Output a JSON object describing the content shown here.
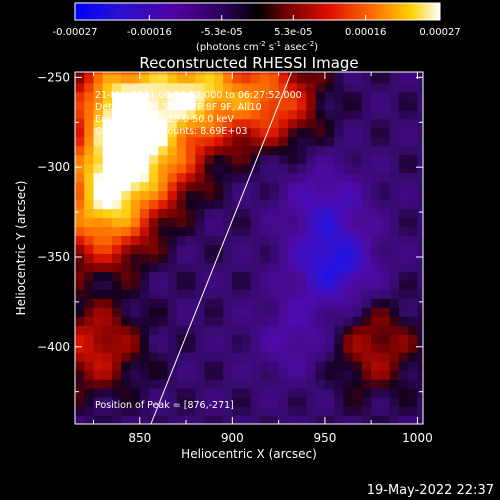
{
  "colorbar": {
    "tick_labels": [
      "-0.00027",
      "-0.00016",
      "-5.3e-05",
      "5.3e-05",
      "0.00016",
      "0.00027"
    ],
    "tick_values": [
      -0.00027,
      -0.00016,
      -5.3e-05,
      5.3e-05,
      0.00016,
      0.00027
    ],
    "range": [
      -0.00027,
      0.00027
    ],
    "units_label": {
      "a": "(photons cm",
      "b": "-2",
      "c": " s",
      "d": "-1",
      "e": " asec",
      "f": "-2",
      "g": ")"
    },
    "colors": [
      "#0000ff",
      "#3a00c0",
      "#6a00a0",
      "#000000",
      "#a00000",
      "#ff2000",
      "#ff8000",
      "#ffd000",
      "#ffffff"
    ]
  },
  "chart_data": {
    "type": "heatmap",
    "title": "Reconstructed RHESSI Image",
    "xlabel": "Heliocentric X (arcsec)",
    "ylabel": "Heliocentric Y (arcsec)",
    "xlim": [
      815,
      1003
    ],
    "ylim": [
      -443,
      -247
    ],
    "x_ticks": [
      850,
      900,
      950,
      1000
    ],
    "x_tick_labels": [
      "850",
      "900",
      "950",
      "1000"
    ],
    "y_ticks": [
      -250,
      -300,
      -350,
      -400
    ],
    "y_tick_labels": [
      "−250",
      "−300",
      "−350",
      "−400"
    ],
    "annotations": [
      "21-Mar-2011 06:22:52.000 to 06:27:52.000",
      "Detectors: 3F 5F 6F 7F 8F 9F, All10",
      "Energy Range: 25.0-50.0 keV",
      "Clean     Total counts: 8.69E+03"
    ],
    "peak_label": "Position of Peak = [876,-271]",
    "peak_position": [
      876,
      -271
    ],
    "limb_line": [
      [
        856,
        -443
      ],
      [
        932,
        -247
      ]
    ],
    "hot_regions": [
      {
        "x": 840,
        "y": -262,
        "value": 0.00027
      },
      {
        "x": 880,
        "y": -258,
        "value": 0.00025
      },
      {
        "x": 920,
        "y": -262,
        "value": 0.00018
      },
      {
        "x": 835,
        "y": -300,
        "value": 0.00022
      },
      {
        "x": 860,
        "y": -295,
        "value": 0.00016
      },
      {
        "x": 830,
        "y": -330,
        "value": 0.0002
      },
      {
        "x": 825,
        "y": -400,
        "value": 0.00012
      },
      {
        "x": 975,
        "y": -400,
        "value": 0.0001
      }
    ],
    "cold_regions": [
      {
        "x": 955,
        "y": -355,
        "value": -0.00016
      },
      {
        "x": 950,
        "y": -320,
        "value": -0.0001
      },
      {
        "x": 935,
        "y": -395,
        "value": -8e-05
      }
    ]
  },
  "footer": {
    "timestamp": "19-May-2022 22:37"
  }
}
